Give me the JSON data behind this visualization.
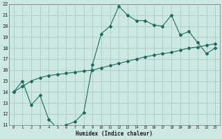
{
  "xlabel": "Humidex (Indice chaleur)",
  "bg_color": "#cde8e2",
  "grid_color": "#aaccc6",
  "line_color": "#1e6b5e",
  "line1_x": [
    0,
    1,
    2,
    3,
    4,
    5,
    6,
    7,
    8,
    9,
    10,
    11,
    12,
    13,
    14,
    15,
    16,
    17,
    18,
    19,
    20,
    21,
    22,
    23
  ],
  "line1_y": [
    14.0,
    15.0,
    12.8,
    13.7,
    11.5,
    10.7,
    11.0,
    11.3,
    12.1,
    16.5,
    19.3,
    20.0,
    21.8,
    21.0,
    20.5,
    20.5,
    20.1,
    20.0,
    21.0,
    19.2,
    19.5,
    18.5,
    17.5,
    18.0
  ],
  "line2_x": [
    0,
    1,
    2,
    3,
    4,
    5,
    6,
    7,
    8,
    9,
    10,
    11,
    12,
    13,
    14,
    15,
    16,
    17,
    18,
    19,
    20,
    21,
    22,
    23
  ],
  "line2_y": [
    14.0,
    14.5,
    15.0,
    15.3,
    15.5,
    15.6,
    15.7,
    15.8,
    15.9,
    16.0,
    16.2,
    16.4,
    16.6,
    16.8,
    17.0,
    17.2,
    17.35,
    17.5,
    17.6,
    17.8,
    18.0,
    18.1,
    18.25,
    18.4
  ],
  "ylim": [
    11,
    22
  ],
  "xlim": [
    -0.5,
    23.5
  ],
  "yticks": [
    11,
    12,
    13,
    14,
    15,
    16,
    17,
    18,
    19,
    20,
    21,
    22
  ],
  "xticks": [
    0,
    1,
    2,
    3,
    4,
    5,
    6,
    7,
    8,
    9,
    10,
    11,
    12,
    13,
    14,
    15,
    16,
    17,
    18,
    19,
    20,
    21,
    22,
    23
  ]
}
